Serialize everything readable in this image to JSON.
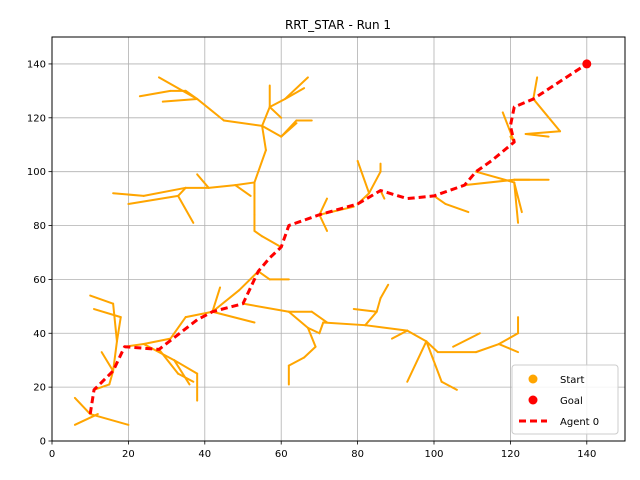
{
  "chart_data": {
    "type": "line",
    "title": "RRT_STAR - Run 1",
    "xlim": [
      0,
      150
    ],
    "ylim": [
      0,
      150
    ],
    "xticks": [
      0,
      20,
      40,
      60,
      80,
      100,
      120,
      140
    ],
    "yticks": [
      0,
      20,
      40,
      60,
      80,
      100,
      120,
      140
    ],
    "grid": true,
    "legend": {
      "placement": "bottom-right",
      "entries": [
        {
          "label": "Start",
          "marker": "circle",
          "color": "#ffa500"
        },
        {
          "label": "Goal",
          "marker": "circle",
          "color": "#ff0000"
        },
        {
          "label": "Agent 0",
          "marker": "dashed-line",
          "color": "#ff0000"
        }
      ]
    },
    "colors": {
      "tree": "#ffa500",
      "path": "#ff0000",
      "goal": "#ff0000",
      "start": "#ffa500"
    },
    "start": [
      10,
      10
    ],
    "goal": [
      140,
      140
    ],
    "path": [
      [
        10,
        10
      ],
      [
        11,
        19
      ],
      [
        16,
        26
      ],
      [
        19,
        35
      ],
      [
        28,
        34
      ],
      [
        38,
        45
      ],
      [
        42,
        48
      ],
      [
        50,
        51
      ],
      [
        54,
        63
      ],
      [
        57,
        68
      ],
      [
        60,
        72
      ],
      [
        62,
        80
      ],
      [
        70,
        84
      ],
      [
        80,
        88
      ],
      [
        86,
        93
      ],
      [
        93,
        90
      ],
      [
        100,
        91
      ],
      [
        108,
        95
      ],
      [
        111,
        100
      ],
      [
        115,
        104
      ],
      [
        121,
        111
      ],
      [
        120,
        117
      ],
      [
        121,
        124
      ],
      [
        126,
        127
      ],
      [
        140,
        140
      ]
    ],
    "tree_edges": [
      [
        [
          6,
          6
        ],
        [
          12,
          10
        ]
      ],
      [
        [
          6,
          16
        ],
        [
          10,
          10
        ]
      ],
      [
        [
          10,
          10
        ],
        [
          20,
          6
        ]
      ],
      [
        [
          11,
          19
        ],
        [
          15,
          21
        ]
      ],
      [
        [
          13,
          33
        ],
        [
          16,
          26
        ]
      ],
      [
        [
          15,
          21
        ],
        [
          16,
          26
        ]
      ],
      [
        [
          16,
          26
        ],
        [
          17,
          37
        ]
      ],
      [
        [
          17,
          37
        ],
        [
          18,
          46
        ]
      ],
      [
        [
          18,
          46
        ],
        [
          11,
          49
        ]
      ],
      [
        [
          17,
          37
        ],
        [
          16,
          51
        ]
      ],
      [
        [
          16,
          51
        ],
        [
          10,
          54
        ]
      ],
      [
        [
          19,
          35
        ],
        [
          24,
          36
        ]
      ],
      [
        [
          24,
          36
        ],
        [
          31,
          38
        ]
      ],
      [
        [
          31,
          38
        ],
        [
          35,
          46
        ]
      ],
      [
        [
          35,
          46
        ],
        [
          42,
          48
        ]
      ],
      [
        [
          24,
          36
        ],
        [
          32,
          30
        ]
      ],
      [
        [
          32,
          30
        ],
        [
          38,
          25
        ]
      ],
      [
        [
          38,
          25
        ],
        [
          38,
          15
        ]
      ],
      [
        [
          32,
          30
        ],
        [
          36,
          21
        ]
      ],
      [
        [
          28,
          34
        ],
        [
          33,
          25
        ]
      ],
      [
        [
          33,
          25
        ],
        [
          37,
          22
        ]
      ],
      [
        [
          42,
          48
        ],
        [
          44,
          57
        ]
      ],
      [
        [
          42,
          48
        ],
        [
          49,
          56
        ]
      ],
      [
        [
          49,
          56
        ],
        [
          54,
          63
        ]
      ],
      [
        [
          42,
          48
        ],
        [
          53,
          44
        ]
      ],
      [
        [
          50,
          51
        ],
        [
          62,
          48
        ]
      ],
      [
        [
          62,
          48
        ],
        [
          68,
          48
        ]
      ],
      [
        [
          68,
          48
        ],
        [
          72,
          44
        ]
      ],
      [
        [
          62,
          48
        ],
        [
          67,
          42
        ]
      ],
      [
        [
          67,
          42
        ],
        [
          69,
          35
        ]
      ],
      [
        [
          69,
          35
        ],
        [
          66,
          31
        ]
      ],
      [
        [
          66,
          31
        ],
        [
          62,
          28
        ]
      ],
      [
        [
          62,
          28
        ],
        [
          62,
          21
        ]
      ],
      [
        [
          67,
          42
        ],
        [
          70,
          40
        ]
      ],
      [
        [
          70,
          40
        ],
        [
          71,
          44
        ]
      ],
      [
        [
          71,
          44
        ],
        [
          82,
          43
        ]
      ],
      [
        [
          82,
          43
        ],
        [
          93,
          41
        ]
      ],
      [
        [
          93,
          41
        ],
        [
          98,
          37
        ]
      ],
      [
        [
          98,
          37
        ],
        [
          101,
          33
        ]
      ],
      [
        [
          101,
          33
        ],
        [
          111,
          33
        ]
      ],
      [
        [
          111,
          33
        ],
        [
          117,
          36
        ]
      ],
      [
        [
          117,
          36
        ],
        [
          122,
          40
        ]
      ],
      [
        [
          122,
          40
        ],
        [
          122,
          46
        ]
      ],
      [
        [
          117,
          36
        ],
        [
          122,
          33
        ]
      ],
      [
        [
          98,
          37
        ],
        [
          102,
          22
        ]
      ],
      [
        [
          102,
          22
        ],
        [
          106,
          19
        ]
      ],
      [
        [
          98,
          37
        ],
        [
          93,
          22
        ]
      ],
      [
        [
          82,
          43
        ],
        [
          85,
          48
        ]
      ],
      [
        [
          85,
          48
        ],
        [
          86,
          53
        ]
      ],
      [
        [
          86,
          53
        ],
        [
          88,
          58
        ]
      ],
      [
        [
          85,
          48
        ],
        [
          79,
          49
        ]
      ],
      [
        [
          93,
          41
        ],
        [
          89,
          38
        ]
      ],
      [
        [
          105,
          35
        ],
        [
          112,
          40
        ]
      ],
      [
        [
          57,
          60
        ],
        [
          54,
          63
        ]
      ],
      [
        [
          57,
          60
        ],
        [
          62,
          60
        ]
      ],
      [
        [
          60,
          72
        ],
        [
          55,
          76
        ]
      ],
      [
        [
          55,
          76
        ],
        [
          53,
          78
        ]
      ],
      [
        [
          53,
          78
        ],
        [
          53,
          84
        ]
      ],
      [
        [
          53,
          84
        ],
        [
          53,
          92
        ]
      ],
      [
        [
          53,
          92
        ],
        [
          53,
          96
        ]
      ],
      [
        [
          53,
          96
        ],
        [
          48,
          95
        ]
      ],
      [
        [
          48,
          95
        ],
        [
          41,
          94
        ]
      ],
      [
        [
          41,
          94
        ],
        [
          35,
          94
        ]
      ],
      [
        [
          35,
          94
        ],
        [
          24,
          91
        ]
      ],
      [
        [
          24,
          91
        ],
        [
          16,
          92
        ]
      ],
      [
        [
          41,
          94
        ],
        [
          38,
          99
        ]
      ],
      [
        [
          35,
          94
        ],
        [
          33,
          91
        ]
      ],
      [
        [
          33,
          91
        ],
        [
          37,
          81
        ]
      ],
      [
        [
          33,
          91
        ],
        [
          20,
          88
        ]
      ],
      [
        [
          48,
          95
        ],
        [
          52,
          91
        ]
      ],
      [
        [
          53,
          96
        ],
        [
          56,
          108
        ]
      ],
      [
        [
          56,
          108
        ],
        [
          55,
          117
        ]
      ],
      [
        [
          55,
          117
        ],
        [
          57,
          124
        ]
      ],
      [
        [
          57,
          124
        ],
        [
          61,
          127
        ]
      ],
      [
        [
          61,
          127
        ],
        [
          66,
          131
        ]
      ],
      [
        [
          55,
          117
        ],
        [
          45,
          119
        ]
      ],
      [
        [
          45,
          119
        ],
        [
          38,
          127
        ]
      ],
      [
        [
          38,
          127
        ],
        [
          28,
          135
        ]
      ],
      [
        [
          38,
          127
        ],
        [
          29,
          126
        ]
      ],
      [
        [
          38,
          127
        ],
        [
          35,
          130
        ]
      ],
      [
        [
          35,
          130
        ],
        [
          31,
          130
        ]
      ],
      [
        [
          31,
          130
        ],
        [
          23,
          128
        ]
      ],
      [
        [
          55,
          117
        ],
        [
          60,
          113
        ]
      ],
      [
        [
          60,
          113
        ],
        [
          64,
          119
        ]
      ],
      [
        [
          64,
          119
        ],
        [
          68,
          119
        ]
      ],
      [
        [
          60,
          113
        ],
        [
          64,
          118
        ]
      ],
      [
        [
          61,
          127
        ],
        [
          67,
          135
        ]
      ],
      [
        [
          57,
          124
        ],
        [
          57,
          132
        ]
      ],
      [
        [
          57,
          124
        ],
        [
          60,
          120
        ]
      ],
      [
        [
          70,
          84
        ],
        [
          72,
          90
        ]
      ],
      [
        [
          70,
          84
        ],
        [
          79,
          87
        ]
      ],
      [
        [
          70,
          84
        ],
        [
          72,
          78
        ]
      ],
      [
        [
          80,
          88
        ],
        [
          83,
          92
        ]
      ],
      [
        [
          83,
          92
        ],
        [
          86,
          100
        ]
      ],
      [
        [
          86,
          100
        ],
        [
          86,
          103
        ]
      ],
      [
        [
          83,
          92
        ],
        [
          80,
          104
        ]
      ],
      [
        [
          86,
          93
        ],
        [
          87,
          90
        ]
      ],
      [
        [
          100,
          91
        ],
        [
          103,
          88
        ]
      ],
      [
        [
          103,
          88
        ],
        [
          109,
          85
        ]
      ],
      [
        [
          108,
          95
        ],
        [
          121,
          97
        ]
      ],
      [
        [
          121,
          97
        ],
        [
          125,
          97
        ]
      ],
      [
        [
          121,
          97
        ],
        [
          130,
          97
        ]
      ],
      [
        [
          111,
          100
        ],
        [
          121,
          96
        ]
      ],
      [
        [
          121,
          96
        ],
        [
          123,
          85
        ]
      ],
      [
        [
          121,
          96
        ],
        [
          122,
          81
        ]
      ],
      [
        [
          121,
          111
        ],
        [
          118,
          122
        ]
      ],
      [
        [
          121,
          111
        ],
        [
          120,
          113
        ]
      ],
      [
        [
          126,
          127
        ],
        [
          127,
          135
        ]
      ],
      [
        [
          126,
          127
        ],
        [
          133,
          115
        ]
      ],
      [
        [
          133,
          115
        ],
        [
          124,
          114
        ]
      ],
      [
        [
          124,
          114
        ],
        [
          130,
          113
        ]
      ]
    ]
  }
}
